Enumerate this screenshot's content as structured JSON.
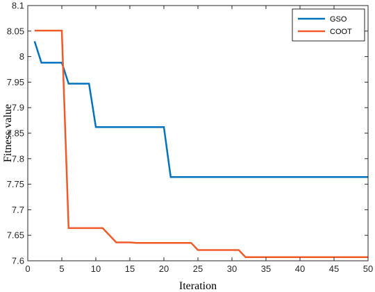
{
  "chart_data": {
    "type": "line",
    "xlabel": "Iteration",
    "ylabel": "Fitness value",
    "xlim": [
      0,
      50
    ],
    "ylim": [
      7.6,
      8.1
    ],
    "x_ticks": [
      "0",
      "5",
      "10",
      "15",
      "20",
      "25",
      "30",
      "35",
      "40",
      "45",
      "50"
    ],
    "y_ticks": [
      "7.6",
      "7.65",
      "7.7",
      "7.75",
      "7.8",
      "7.85",
      "7.9",
      "7.95",
      "8",
      "8.05",
      "8.1"
    ],
    "legend_position": "top-right",
    "grid": false,
    "series": [
      {
        "name": "GSO",
        "color": "#0072BD",
        "points": [
          [
            1,
            8.03
          ],
          [
            2,
            7.988
          ],
          [
            5,
            7.988
          ],
          [
            6,
            7.947
          ],
          [
            9,
            7.947
          ],
          [
            10,
            7.862
          ],
          [
            20,
            7.862
          ],
          [
            21,
            7.764
          ],
          [
            50,
            7.764
          ]
        ]
      },
      {
        "name": "COOT",
        "color": "#F05A28",
        "points": [
          [
            1,
            8.051
          ],
          [
            5,
            8.051
          ],
          [
            6,
            7.664
          ],
          [
            11,
            7.664
          ],
          [
            13,
            7.636
          ],
          [
            15,
            7.636
          ],
          [
            16,
            7.635
          ],
          [
            24,
            7.635
          ],
          [
            25,
            7.621
          ],
          [
            31,
            7.621
          ],
          [
            32,
            7.607
          ],
          [
            50,
            7.607
          ]
        ]
      }
    ]
  }
}
